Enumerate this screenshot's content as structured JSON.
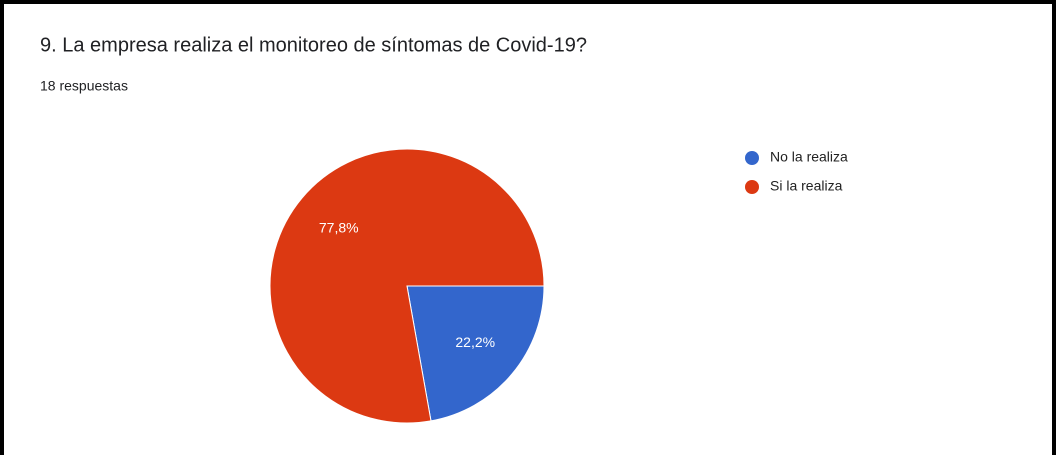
{
  "chart_data": {
    "type": "pie",
    "title": "9. La empresa realiza el monitoreo de síntomas de Covid-19?",
    "subtitle": "18 respuestas",
    "categories": [
      "No la realiza",
      "Si la realiza"
    ],
    "values": [
      22.2,
      77.8
    ],
    "value_labels": [
      "22,2%",
      "77,8%"
    ],
    "colors": [
      "#3366cc",
      "#dc3912"
    ]
  }
}
